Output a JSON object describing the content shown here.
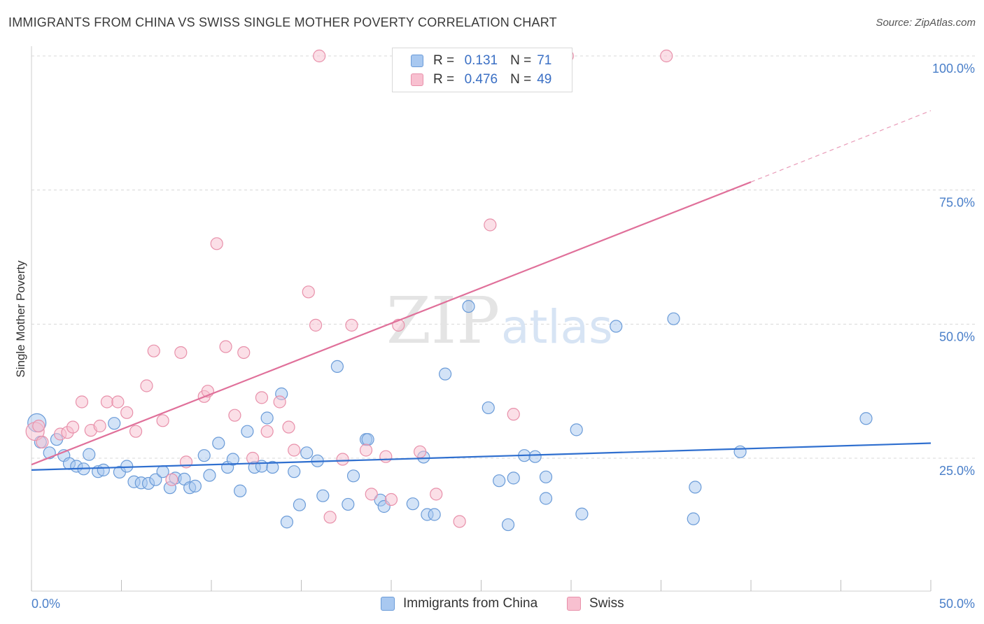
{
  "title": "IMMIGRANTS FROM CHINA VS SWISS SINGLE MOTHER POVERTY CORRELATION CHART",
  "source": "Source: ZipAtlas.com",
  "watermark": {
    "zip": "ZIP",
    "atlas": "atlas"
  },
  "legend": {
    "rows": [
      {
        "r_label": "R =",
        "r_value": "0.131",
        "n_label": "N =",
        "n_value": "71",
        "color": "#a8c8f0",
        "border": "#6a9bd8"
      },
      {
        "r_label": "R =",
        "r_value": "0.476",
        "n_label": "N =",
        "n_value": "49",
        "color": "#f8c0d0",
        "border": "#e890aa"
      }
    ]
  },
  "colors": {
    "blue_fill": "#a8c8f0",
    "blue_stroke": "#6a9bd8",
    "blue_line": "#2f6fcf",
    "pink_fill": "#f8c0d0",
    "pink_stroke": "#e890aa",
    "pink_line": "#e0709a",
    "grid": "#d8d8d8",
    "tick_text": "#4a7fc9"
  },
  "chart_data": {
    "type": "scatter",
    "title": "IMMIGRANTS FROM CHINA VS SWISS SINGLE MOTHER POVERTY CORRELATION CHART",
    "xlabel": "",
    "ylabel": "Single Mother Poverty",
    "xlim": [
      0,
      50
    ],
    "ylim": [
      0,
      105
    ],
    "x_tick_labels": [
      "0.0%",
      "50.0%"
    ],
    "y_ticks": [
      25,
      50,
      75,
      100
    ],
    "y_tick_labels": [
      "25.0%",
      "50.0%",
      "75.0%",
      "100.0%"
    ],
    "grid": true,
    "legend_position": "bottom",
    "series": [
      {
        "name": "Immigrants from China",
        "color": "#a8c8f0",
        "trend": {
          "x0": 0,
          "y0": 22.8,
          "x1": 50,
          "y1": 27.8
        },
        "points": [
          [
            0.3,
            31.6
          ],
          [
            0.5,
            28.0
          ],
          [
            1.0,
            26.0
          ],
          [
            1.4,
            28.5
          ],
          [
            1.8,
            25.5
          ],
          [
            2.1,
            24.0
          ],
          [
            2.5,
            23.5
          ],
          [
            2.9,
            23.0
          ],
          [
            3.2,
            25.7
          ],
          [
            3.7,
            22.5
          ],
          [
            4.0,
            22.8
          ],
          [
            4.6,
            31.5
          ],
          [
            4.9,
            22.4
          ],
          [
            5.3,
            23.5
          ],
          [
            5.7,
            20.6
          ],
          [
            6.1,
            20.4
          ],
          [
            6.5,
            20.3
          ],
          [
            6.9,
            21.0
          ],
          [
            7.3,
            22.5
          ],
          [
            7.7,
            19.5
          ],
          [
            8.0,
            21.3
          ],
          [
            8.5,
            21.1
          ],
          [
            8.8,
            19.5
          ],
          [
            9.1,
            19.8
          ],
          [
            9.6,
            25.5
          ],
          [
            9.9,
            21.8
          ],
          [
            10.4,
            27.8
          ],
          [
            10.9,
            23.3
          ],
          [
            11.2,
            24.8
          ],
          [
            11.6,
            18.9
          ],
          [
            12.0,
            30.0
          ],
          [
            12.4,
            23.3
          ],
          [
            12.8,
            23.5
          ],
          [
            13.1,
            32.5
          ],
          [
            13.4,
            23.3
          ],
          [
            13.9,
            37.0
          ],
          [
            14.2,
            13.1
          ],
          [
            14.6,
            22.5
          ],
          [
            14.9,
            16.3
          ],
          [
            15.3,
            26.0
          ],
          [
            15.9,
            24.5
          ],
          [
            16.2,
            18.0
          ],
          [
            17.0,
            42.1
          ],
          [
            17.6,
            16.4
          ],
          [
            17.9,
            21.7
          ],
          [
            18.6,
            28.5
          ],
          [
            18.7,
            28.5
          ],
          [
            19.4,
            17.2
          ],
          [
            19.6,
            16.0
          ],
          [
            21.2,
            16.5
          ],
          [
            21.8,
            25.2
          ],
          [
            22.0,
            14.5
          ],
          [
            22.4,
            14.5
          ],
          [
            23.0,
            40.7
          ],
          [
            24.3,
            53.3
          ],
          [
            25.4,
            34.4
          ],
          [
            26.0,
            20.8
          ],
          [
            26.5,
            12.6
          ],
          [
            26.8,
            21.3
          ],
          [
            27.4,
            25.5
          ],
          [
            28.0,
            25.3
          ],
          [
            28.6,
            17.5
          ],
          [
            28.6,
            21.5
          ],
          [
            30.3,
            30.3
          ],
          [
            30.6,
            14.6
          ],
          [
            32.5,
            49.6
          ],
          [
            35.7,
            51.0
          ],
          [
            36.8,
            13.7
          ],
          [
            36.9,
            19.6
          ],
          [
            39.4,
            26.2
          ],
          [
            46.4,
            32.4
          ]
        ]
      },
      {
        "name": "Swiss",
        "color": "#f8c0d0",
        "trend": {
          "x0": 0,
          "y0": 23.8,
          "x1": 40,
          "y1": 76.5,
          "dash_to_x": 50,
          "dash_to_y": 89.8
        },
        "points": [
          [
            0.2,
            30.0
          ],
          [
            0.6,
            28.0
          ],
          [
            1.6,
            29.5
          ],
          [
            2.0,
            29.8
          ],
          [
            2.3,
            30.8
          ],
          [
            2.8,
            35.5
          ],
          [
            3.3,
            30.2
          ],
          [
            3.8,
            31.0
          ],
          [
            4.2,
            35.5
          ],
          [
            4.8,
            35.5
          ],
          [
            5.3,
            33.5
          ],
          [
            5.8,
            30.0
          ],
          [
            6.4,
            38.5
          ],
          [
            6.8,
            45.0
          ],
          [
            7.3,
            32.0
          ],
          [
            7.8,
            21.0
          ],
          [
            8.3,
            44.7
          ],
          [
            8.6,
            24.3
          ],
          [
            9.6,
            36.5
          ],
          [
            9.8,
            37.5
          ],
          [
            10.3,
            65.0
          ],
          [
            10.8,
            45.8
          ],
          [
            11.3,
            33.0
          ],
          [
            11.8,
            44.7
          ],
          [
            12.3,
            25.0
          ],
          [
            12.8,
            36.3
          ],
          [
            13.1,
            30.0
          ],
          [
            13.8,
            35.5
          ],
          [
            14.3,
            30.8
          ],
          [
            14.6,
            26.5
          ],
          [
            15.4,
            56.0
          ],
          [
            15.8,
            49.8
          ],
          [
            16.0,
            100.0
          ],
          [
            16.6,
            14.0
          ],
          [
            17.3,
            24.8
          ],
          [
            17.8,
            49.8
          ],
          [
            18.6,
            26.5
          ],
          [
            18.9,
            18.3
          ],
          [
            19.7,
            25.3
          ],
          [
            20.0,
            17.3
          ],
          [
            20.4,
            49.8
          ],
          [
            21.6,
            26.2
          ],
          [
            22.5,
            18.3
          ],
          [
            23.8,
            13.2
          ],
          [
            25.5,
            68.5
          ],
          [
            26.8,
            33.2
          ],
          [
            29.8,
            100.0
          ],
          [
            35.3,
            100.0
          ],
          [
            0.4,
            31.0
          ]
        ]
      }
    ]
  },
  "bottom_legend": {
    "items": [
      {
        "label": "Immigrants from China",
        "color": "#a8c8f0",
        "border": "#6a9bd8"
      },
      {
        "label": "Swiss",
        "color": "#f8c0d0",
        "border": "#e890aa"
      }
    ]
  }
}
